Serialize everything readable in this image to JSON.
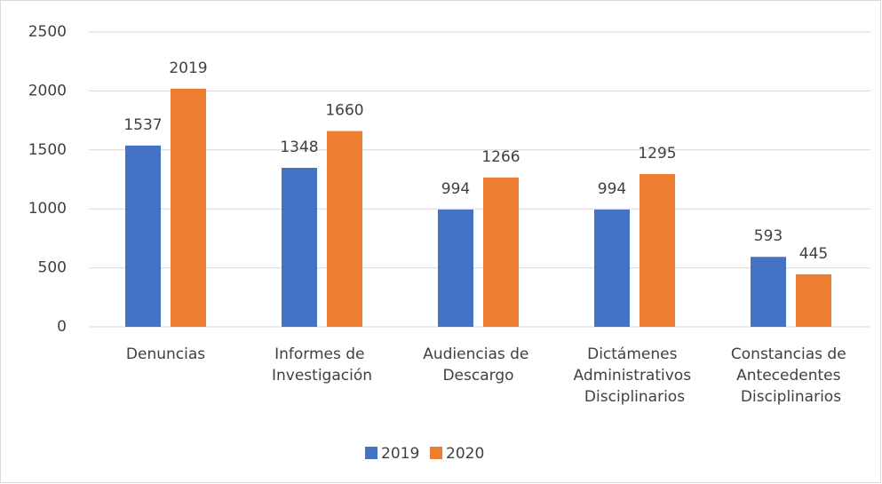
{
  "chart_data": {
    "type": "bar",
    "categories": [
      "Denuncias",
      "Informes de Investigación",
      "Audiencias de Descargo",
      "Dictámenes Administrativos Disciplinarios",
      "Constancias de Antecedentes Disciplinarios"
    ],
    "series": [
      {
        "name": "2019",
        "color": "#4472c4",
        "values": [
          1537,
          1348,
          994,
          994,
          593
        ]
      },
      {
        "name": "2020",
        "color": "#ed7d31",
        "values": [
          2019,
          1660,
          1266,
          1295,
          445
        ]
      }
    ],
    "ylim": [
      0,
      2500
    ],
    "yticks": [
      0,
      500,
      1000,
      1500,
      2000,
      2500
    ],
    "grid": true,
    "legend": "bottom"
  }
}
